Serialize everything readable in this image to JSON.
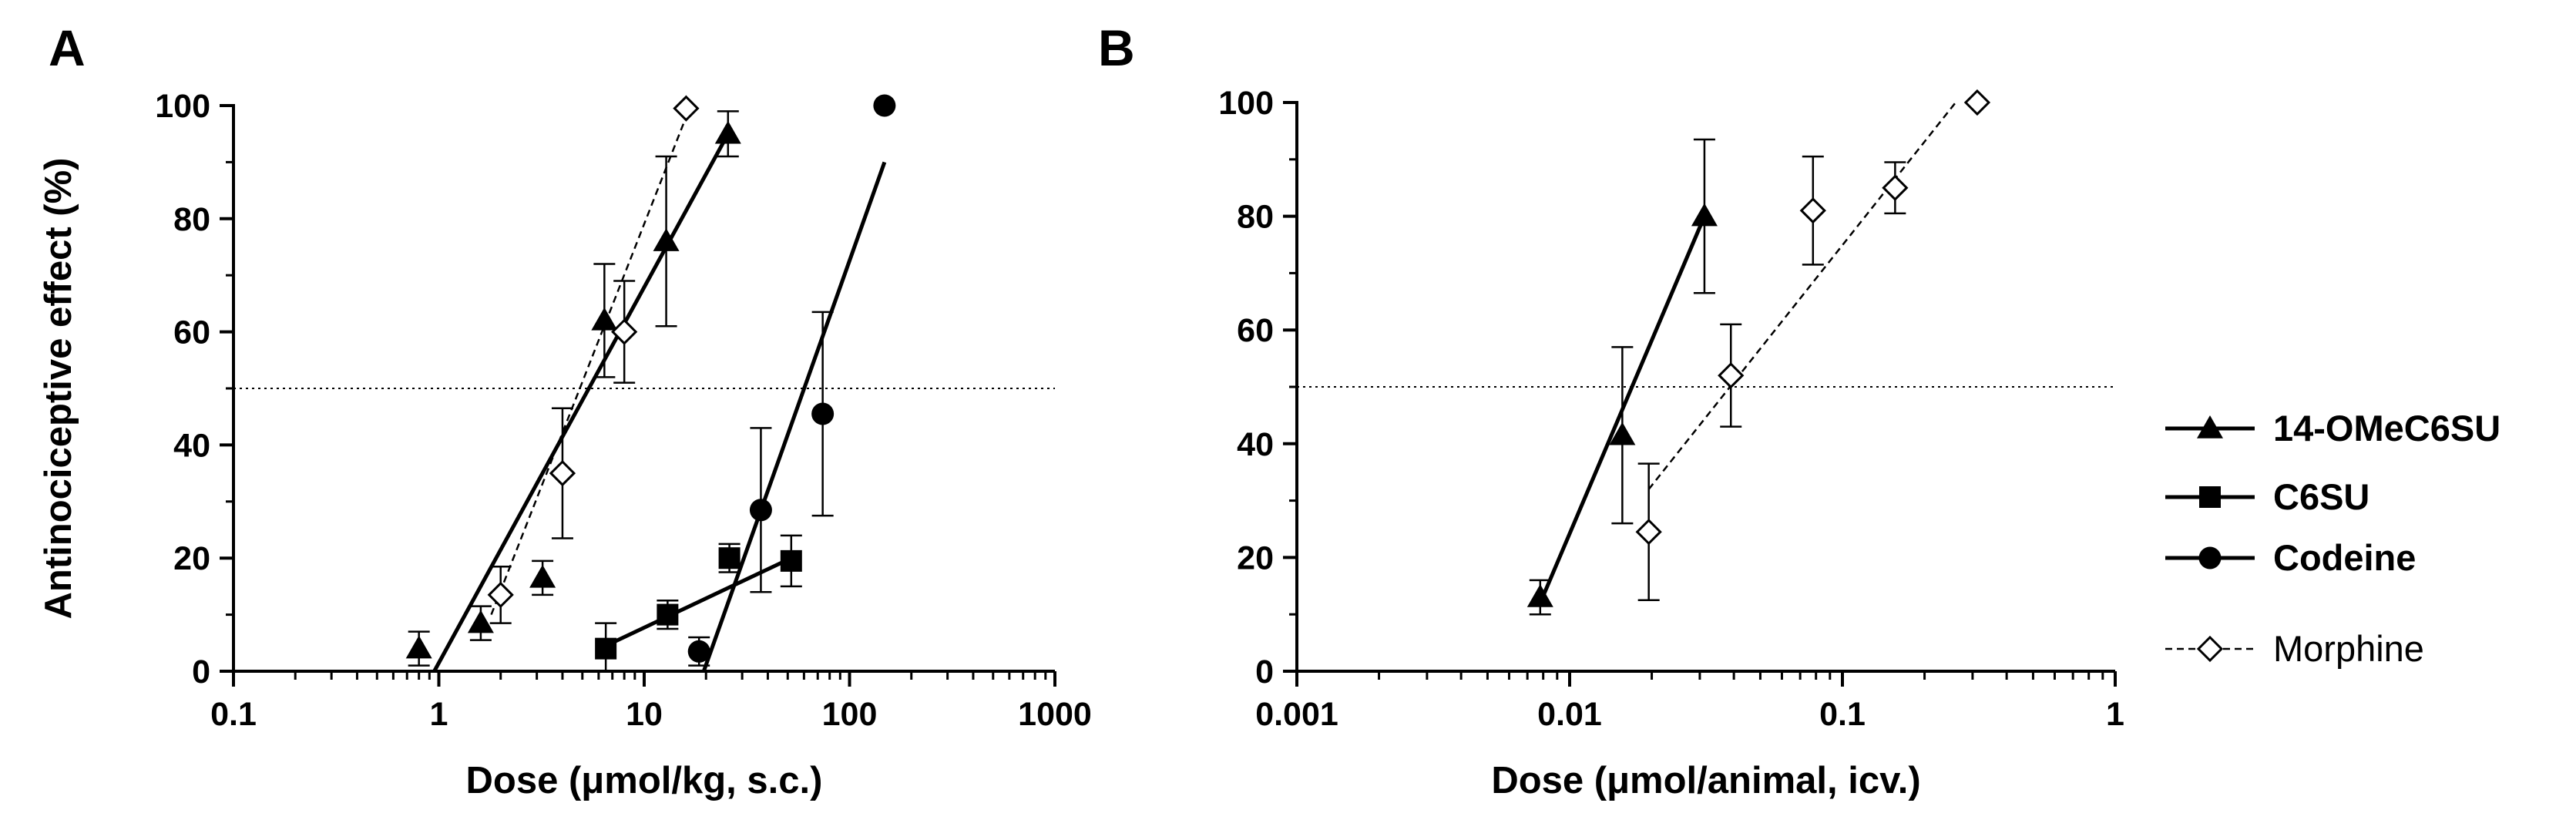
{
  "colors": {
    "ink": "#000000",
    "open_marker_fill": "#ffffff"
  },
  "legend": [
    {
      "label": "14-OMeC6SU",
      "marker": "triangle",
      "line": "solid"
    },
    {
      "label": "C6SU",
      "marker": "square",
      "line": "solid"
    },
    {
      "label": "Codeine",
      "marker": "circle",
      "line": "solid"
    },
    {
      "label": "Morphine",
      "marker": "open-diamond",
      "line": "dashed"
    }
  ],
  "chart_data": [
    {
      "panel": "A",
      "type": "scatter",
      "title": "",
      "xlabel": "Dose (μmol/kg, s.c.)",
      "ylabel": "Antinociceptive effect (%)",
      "xscale": "log",
      "xlim": [
        0.1,
        1000
      ],
      "ylim": [
        0,
        100
      ],
      "xticks": [
        0.1,
        1,
        10,
        100,
        1000
      ],
      "xtick_labels": [
        "0.1",
        "1",
        "10",
        "100",
        "1000"
      ],
      "yticks": [
        0,
        20,
        40,
        60,
        80,
        100
      ],
      "ytick_labels": [
        "0",
        "20",
        "40",
        "60",
        "80",
        "100"
      ],
      "reference_line": {
        "y": 50,
        "style": "dotted"
      },
      "series": [
        {
          "name": "14-OMeC6SU",
          "marker": "triangle",
          "points": [
            {
              "x": 0.8,
              "y": 4,
              "err": 3
            },
            {
              "x": 1.6,
              "y": 8.5,
              "err": 3
            },
            {
              "x": 3.2,
              "y": 16.5,
              "err": 3
            },
            {
              "x": 6.4,
              "y": 62,
              "err": 10
            },
            {
              "x": 12.8,
              "y": 76,
              "err": 15
            },
            {
              "x": 25.6,
              "y": 95,
              "err": 4
            }
          ],
          "fit": {
            "x": [
              0.95,
              25.6
            ],
            "y": [
              0,
              95
            ],
            "style": "solid"
          }
        },
        {
          "name": "Morphine",
          "marker": "open-diamond",
          "points": [
            {
              "x": 2,
              "y": 13.5,
              "err": 5
            },
            {
              "x": 4,
              "y": 35,
              "err": 11.5
            },
            {
              "x": 8,
              "y": 60,
              "err": 9
            },
            {
              "x": 16,
              "y": 99.5,
              "err": 0
            }
          ],
          "fit": {
            "x": [
              1.8,
              16
            ],
            "y": [
              10,
              98
            ],
            "style": "dashed"
          }
        },
        {
          "name": "C6SU",
          "marker": "square",
          "points": [
            {
              "x": 6.5,
              "y": 4,
              "err": 4.5
            },
            {
              "x": 13,
              "y": 10,
              "err": 2.5
            },
            {
              "x": 26,
              "y": 20,
              "err": 2.5
            },
            {
              "x": 52,
              "y": 19.5,
              "err": 4.5
            }
          ],
          "fit": {
            "x": [
              6.5,
              52
            ],
            "y": [
              4.5,
              20
            ],
            "style": "solid"
          }
        },
        {
          "name": "Codeine",
          "marker": "circle",
          "points": [
            {
              "x": 18.5,
              "y": 3.5,
              "err": 2.5
            },
            {
              "x": 37,
              "y": 28.5,
              "err": 14.5
            },
            {
              "x": 74,
              "y": 45.5,
              "err": 18
            },
            {
              "x": 148,
              "y": 100,
              "err": 0
            }
          ],
          "fit": {
            "x": [
              19.5,
              148
            ],
            "y": [
              0,
              90
            ],
            "style": "solid"
          }
        }
      ]
    },
    {
      "panel": "B",
      "type": "scatter",
      "title": "",
      "xlabel": "Dose (μmol/animal, icv.)",
      "ylabel": "",
      "xscale": "log",
      "xlim": [
        0.001,
        1
      ],
      "ylim": [
        0,
        100
      ],
      "xticks": [
        0.001,
        0.01,
        0.1,
        1
      ],
      "xtick_labels": [
        "0.001",
        "0.01",
        "0.1",
        "1"
      ],
      "yticks": [
        0,
        20,
        40,
        60,
        80,
        100
      ],
      "ytick_labels": [
        "0",
        "20",
        "40",
        "60",
        "80",
        "100"
      ],
      "reference_line": {
        "y": 50,
        "style": "dotted"
      },
      "series": [
        {
          "name": "14-OMeC6SU",
          "marker": "triangle",
          "points": [
            {
              "x": 0.0078,
              "y": 13,
              "err": 3
            },
            {
              "x": 0.0156,
              "y": 41.5,
              "err": 15.5
            },
            {
              "x": 0.0312,
              "y": 80,
              "err": 13.5
            }
          ],
          "fit": {
            "x": [
              0.0078,
              0.0312
            ],
            "y": [
              12,
              80
            ],
            "style": "solid"
          }
        },
        {
          "name": "Morphine",
          "marker": "open-diamond",
          "points": [
            {
              "x": 0.0195,
              "y": 24.5,
              "err": 12
            },
            {
              "x": 0.039,
              "y": 52,
              "err": 9
            },
            {
              "x": 0.078,
              "y": 81,
              "err": 9.5
            },
            {
              "x": 0.156,
              "y": 85,
              "err": 4.5
            },
            {
              "x": 0.312,
              "y": 100,
              "err": 0
            }
          ],
          "fit": {
            "x": [
              0.0195,
              0.26
            ],
            "y": [
              32,
              100
            ],
            "style": "dashed"
          }
        }
      ]
    }
  ],
  "panel_labels": [
    "A",
    "B"
  ]
}
